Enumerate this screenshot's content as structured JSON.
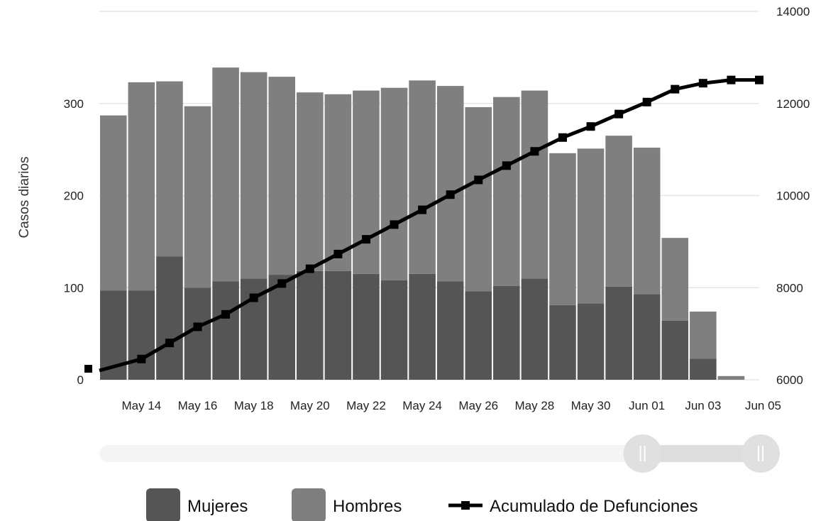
{
  "chart_data": {
    "type": "bar",
    "stacked": true,
    "ylabel": "Casos diarios",
    "y_left_range": [
      0,
      400
    ],
    "y_left_ticks": [
      "0",
      "100",
      "200",
      "300"
    ],
    "y_right_range": [
      6000,
      14000
    ],
    "y_right_ticks": [
      "6000",
      "8000",
      "10000",
      "12000",
      "14000"
    ],
    "x_tick_labels": [
      "May 14",
      "May 16",
      "May 18",
      "May 20",
      "May 22",
      "May 24",
      "May 26",
      "May 28",
      "May 30",
      "Jun 01",
      "Jun 03",
      "Jun 05"
    ],
    "dates": [
      "May 13",
      "May 14",
      "May 15",
      "May 16",
      "May 17",
      "May 18",
      "May 19",
      "May 20",
      "May 21",
      "May 22",
      "May 23",
      "May 24",
      "May 25",
      "May 26",
      "May 27",
      "May 28",
      "May 29",
      "May 30",
      "May 31",
      "Jun 01",
      "Jun 02",
      "Jun 03",
      "Jun 04",
      "Jun 05"
    ],
    "series": [
      {
        "name": "Mujeres",
        "color": "#555555",
        "values": [
          97,
          97,
          134,
          100,
          107,
          110,
          114,
          118,
          118,
          115,
          108,
          115,
          107,
          96,
          102,
          110,
          81,
          83,
          101,
          93,
          64,
          23,
          0,
          0
        ]
      },
      {
        "name": "Hombres",
        "color": "#7f7f7f",
        "values": [
          190,
          226,
          190,
          197,
          232,
          224,
          215,
          194,
          192,
          199,
          209,
          210,
          212,
          200,
          205,
          204,
          165,
          168,
          164,
          159,
          90,
          51,
          4,
          0
        ]
      },
      {
        "name": "Acumulado de Defunciones",
        "color": "#000000",
        "axis": "right",
        "values": [
          6200,
          6450,
          6800,
          7150,
          7420,
          7780,
          8090,
          8410,
          8730,
          9050,
          9370,
          9690,
          10020,
          10340,
          10650,
          10960,
          11260,
          11500,
          11770,
          12030,
          12310,
          12440,
          12510,
          12510
        ]
      }
    ],
    "grid": true,
    "legend_position": "bottom",
    "range_slider": {
      "start_fraction": 0.82,
      "end_fraction": 1.0
    }
  }
}
